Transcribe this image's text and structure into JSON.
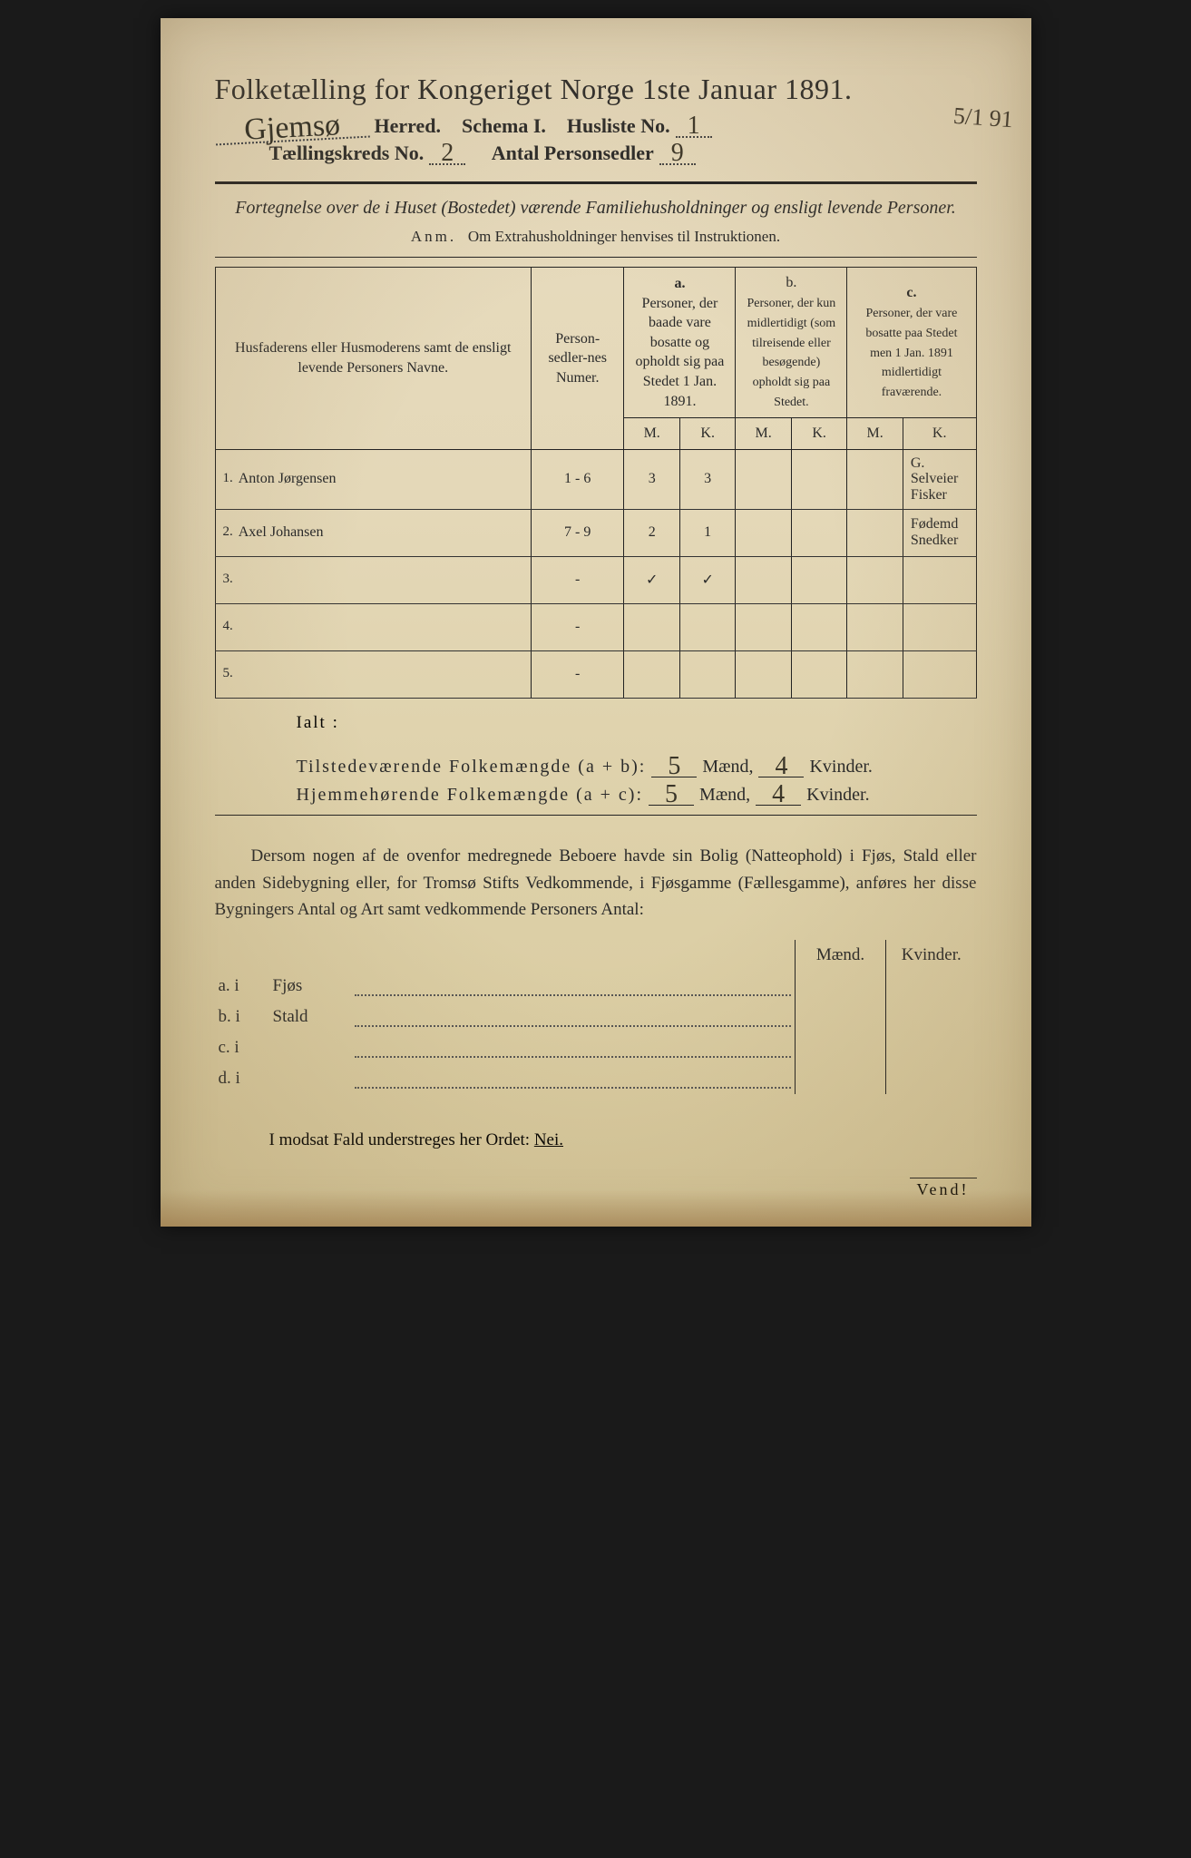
{
  "background_color": "#e4d8b8",
  "text_color": "#2a2a2a",
  "handwriting_color": "#3a3528",
  "header": {
    "title": "Folketælling for Kongeriget Norge 1ste Januar 1891.",
    "herred_value": "Gjemsø",
    "herred_label": "Herred.",
    "schema_label": "Schema I.",
    "husliste_label": "Husliste No.",
    "husliste_value": "1",
    "margin_note": "5/1 91",
    "kreds_label": "Tællingskreds No.",
    "kreds_value": "2",
    "antal_label": "Antal Personsedler",
    "antal_value": "9"
  },
  "subheading": {
    "line": "Fortegnelse over de i Huset (Bostedet) værende Familiehusholdninger og ensligt levende Personer.",
    "anm_prefix": "Anm.",
    "anm_text": "Om Extrahusholdninger henvises til Instruktionen."
  },
  "table": {
    "col_name": "Husfaderens eller Husmoderens samt de ensligt levende Personers Navne.",
    "col_num": "Person-sedler-nes Numer.",
    "col_a_letter": "a.",
    "col_a": "Personer, der baade vare bosatte og opholdt sig paa Stedet 1 Jan. 1891.",
    "col_b_letter": "b.",
    "col_b": "Personer, der kun midlertidigt (som tilreisende eller besøgende) opholdt sig paa Stedet.",
    "col_c_letter": "c.",
    "col_c": "Personer, der vare bosatte paa Stedet men 1 Jan. 1891 midlertidigt fraværende.",
    "mk_m": "M.",
    "mk_k": "K.",
    "rows": [
      {
        "num": "1.",
        "name": "Anton Jørgensen",
        "sedler": "1 - 6",
        "a_m": "3",
        "a_k": "3",
        "b_m": "",
        "b_k": "",
        "c_m": "",
        "c_k": "",
        "note": "G. Selveier Fisker"
      },
      {
        "num": "2.",
        "name": "Axel Johansen",
        "sedler": "7 - 9",
        "a_m": "2",
        "a_k": "1",
        "b_m": "",
        "b_k": "",
        "c_m": "",
        "c_k": "",
        "note": "Fødemd Snedker"
      },
      {
        "num": "3.",
        "name": "",
        "sedler": "-",
        "a_m": "✓",
        "a_k": "✓",
        "b_m": "",
        "b_k": "",
        "c_m": "",
        "c_k": "",
        "note": ""
      },
      {
        "num": "4.",
        "name": "",
        "sedler": "-",
        "a_m": "",
        "a_k": "",
        "b_m": "",
        "b_k": "",
        "c_m": "",
        "c_k": "",
        "note": ""
      },
      {
        "num": "5.",
        "name": "",
        "sedler": "-",
        "a_m": "",
        "a_k": "",
        "b_m": "",
        "b_k": "",
        "c_m": "",
        "c_k": "",
        "note": ""
      }
    ]
  },
  "totals": {
    "ialt": "Ialt :",
    "line1_label": "Tilstedeværende Folkemængde (a + b):",
    "line2_label": "Hjemmehørende Folkemængde (a + c):",
    "maend": "Mænd,",
    "kvinder": "Kvinder.",
    "t_m": "5",
    "t_k": "4",
    "h_m": "5",
    "h_k": "4"
  },
  "paragraph": "Dersom nogen af de ovenfor medregnede Beboere havde sin Bolig (Natteophold) i Fjøs, Stald eller anden Sidebygning eller, for Tromsø Stifts Vedkommende, i Fjøsgamme (Fællesgamme), anføres her disse Bygningers Antal og Art samt vedkommende Personers Antal:",
  "buildings": {
    "head_m": "Mænd.",
    "head_k": "Kvinder.",
    "rows": [
      {
        "key": "a.  i",
        "label": "Fjøs"
      },
      {
        "key": "b.  i",
        "label": "Stald"
      },
      {
        "key": "c.  i",
        "label": ""
      },
      {
        "key": "d.  i",
        "label": ""
      }
    ]
  },
  "footer_line": "I modsat Fald understreges her Ordet: ",
  "footer_nei": "Nei.",
  "vend": "Vend!"
}
